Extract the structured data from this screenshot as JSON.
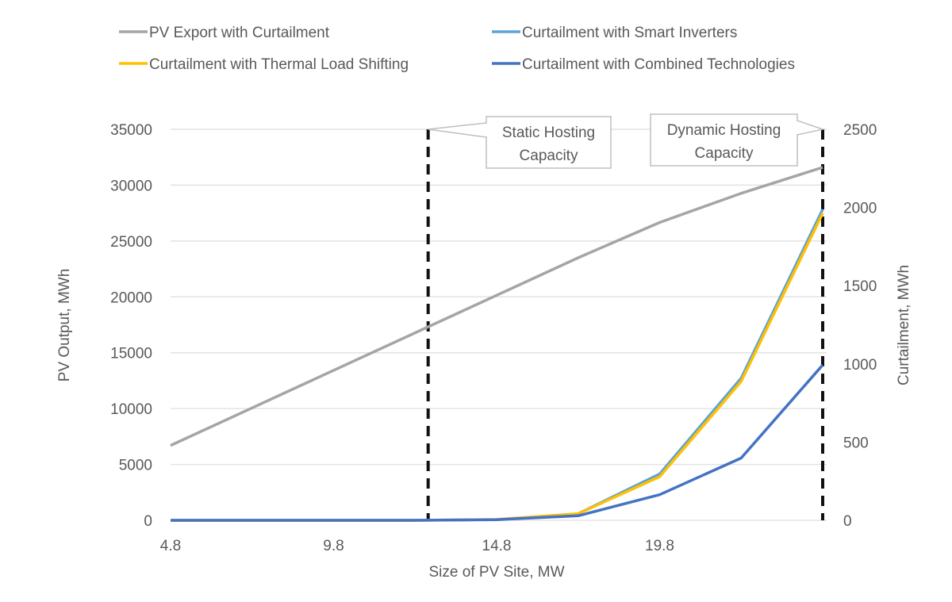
{
  "chart_data": {
    "type": "line",
    "xlabel": "Size of PV Site, MW",
    "ylabel": "PV Output, MWh",
    "y2label": "Curtailment, MWh",
    "x": [
      4.8,
      7.3,
      9.8,
      12.3,
      14.8,
      17.3,
      19.8,
      22.3,
      24.8
    ],
    "xticks": [
      "4.8",
      "9.8",
      "14.8",
      "19.8"
    ],
    "xlim": [
      4.8,
      24.8
    ],
    "ylim": [
      0,
      35000
    ],
    "yticks": [
      "0",
      "5000",
      "10000",
      "15000",
      "20000",
      "25000",
      "30000",
      "35000"
    ],
    "y2lim": [
      0,
      2500
    ],
    "y2ticks": [
      "0",
      "500",
      "1000",
      "1500",
      "2000",
      "2500"
    ],
    "grid": true,
    "legend_position": "top",
    "series": [
      {
        "name": "PV Export with Curtailment",
        "axis": "left",
        "color": "#A5A5A5",
        "values": [
          6700,
          10060,
          13420,
          16780,
          20140,
          23500,
          26660,
          29270,
          31590
        ]
      },
      {
        "name": "Curtailment with Smart Inverters",
        "axis": "right",
        "color": "#5BA3D9",
        "values": [
          0,
          0,
          0,
          0,
          5,
          42,
          296,
          909,
          1988
        ]
      },
      {
        "name": "Curtailment with Thermal Load Shifting",
        "axis": "right",
        "color": "#FFC000",
        "values": [
          0,
          0,
          0,
          0,
          5,
          42,
          279,
          888,
          1963
        ]
      },
      {
        "name": "Curtailment with Combined Technologies",
        "axis": "right",
        "color": "#4472C4",
        "values": [
          0,
          0,
          0,
          0,
          4,
          29,
          164,
          398,
          993
        ]
      }
    ],
    "annotations": [
      {
        "label_line1": "Static Hosting",
        "label_line2": "Capacity",
        "x": 12.7
      },
      {
        "label_line1": "Dynamic Hosting",
        "label_line2": "Capacity",
        "x": 24.8
      }
    ]
  }
}
